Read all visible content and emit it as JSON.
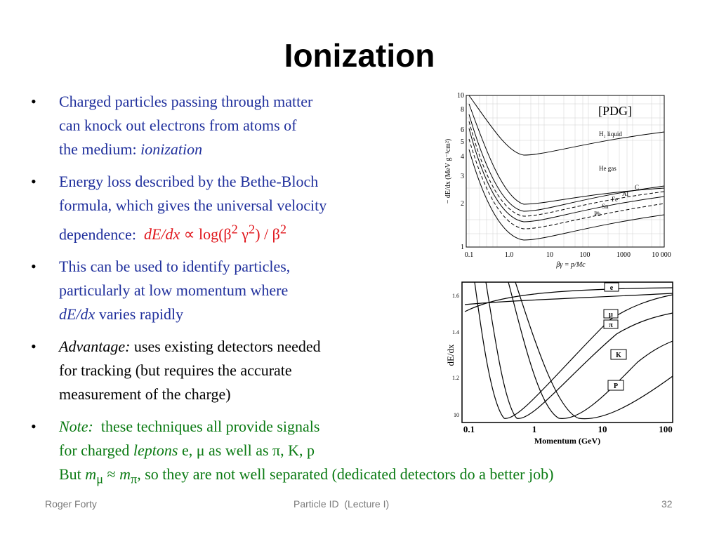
{
  "slide": {
    "title": "Ionization",
    "bullets": [
      {
        "l1": "Charged particles passing through matter",
        "l2": "can knock out electrons from atoms of",
        "l3_text": "the medium: ",
        "l3_em": "ionization"
      },
      {
        "l1": "Energy loss described by the Bethe-Bloch",
        "l2": "formula, which gives the universal velocity",
        "l3_text": "dependence:",
        "formula_a": "dE/dx",
        "formula_b": " ∝ log(β",
        "formula_sup1": "2",
        "formula_c": " γ",
        "formula_sup2": "2",
        "formula_d": ") / β",
        "formula_sup3": "2"
      },
      {
        "l1": "This can be used to identify particles,",
        "l2": "particularly at low momentum where",
        "l3_em": "dE/dx",
        "l3_text": " varies rapidly"
      },
      {
        "l1_em": "Advantage:",
        "l1_text": " uses existing detectors needed",
        "l2": "for tracking (but requires the accurate",
        "l3": "measurement of the charge)"
      },
      {
        "l1_em": "Note:",
        "l1_text": "  these techniques all provide signals",
        "l2_a": "for charged ",
        "l2_em": "leptons",
        "l2_b": " e, μ as well as π, K, p",
        "l3_a": "But ",
        "l3_m1": "m",
        "l3_sub1": "μ",
        "l3_approx": " ≈ ",
        "l3_m2": "m",
        "l3_sub2": "π",
        "l3_b": ", so they are not well separated (dedicated detectors do a better job)"
      }
    ],
    "bullet_char": "•"
  },
  "figures": {
    "top": {
      "source_label": "[PDG]",
      "ylabel": "− dE/dx (MeV g⁻¹cm²)",
      "xlabel": "βγ = p/Mc",
      "y_ticks": [
        "10",
        "8",
        "6",
        "5",
        "4",
        "3",
        "2",
        "1"
      ],
      "x_ticks": [
        "0.1",
        "1.0",
        "10",
        "100",
        "1000",
        "10 000"
      ],
      "curve_labels": [
        "H₂ liquid",
        "He gas",
        "C",
        "Al",
        "Fe",
        "Sn",
        "Pb"
      ]
    },
    "bottom": {
      "ylabel": "dE/dx",
      "xlabel": "Momentum  (GeV)",
      "x_ticks": [
        "0.1",
        "1",
        "10",
        "100"
      ],
      "y_ticks": [
        "1.6",
        "1.4",
        "1.2",
        "10"
      ],
      "curve_labels": [
        "e",
        "μ",
        "π",
        "K",
        "P"
      ]
    }
  },
  "footer": {
    "author": "Roger Forty",
    "course": "Particle ID  (Lecture I)",
    "page": "32"
  },
  "colors": {
    "blue_text": "#1f2f9c",
    "green_text": "#0a7a12",
    "red_text": "#e0141a"
  }
}
